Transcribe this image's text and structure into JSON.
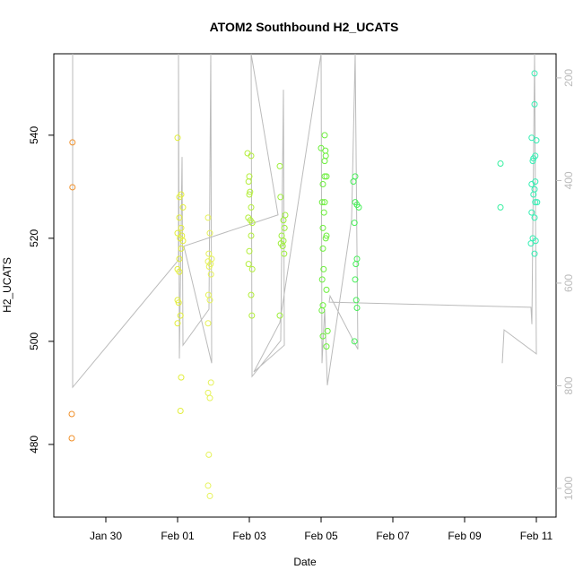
{
  "chart_data": {
    "type": "scatter",
    "title": "ATOM2 Southbound H2_UCATS",
    "x_label": "Date",
    "y_label": "H2_UCATS",
    "xlim": [
      28.55,
      42.55
    ],
    "ylim": [
      465.9,
      555.8
    ],
    "y2lim": [
      1056,
      153
    ],
    "xticks": [
      {
        "value": 30,
        "label": "Jan 30"
      },
      {
        "value": 32,
        "label": "Feb 01"
      },
      {
        "value": 34,
        "label": "Feb 03"
      },
      {
        "value": 36,
        "label": "Feb 05"
      },
      {
        "value": 38,
        "label": "Feb 07"
      },
      {
        "value": 40,
        "label": "Feb 09"
      },
      {
        "value": 42,
        "label": "Feb 11"
      }
    ],
    "yticks": [
      480,
      500,
      520,
      540
    ],
    "y2ticks": [
      200,
      400,
      600,
      800,
      1000
    ],
    "y2_color": "#bbbbbb",
    "series": [
      {
        "color": "#f0902a",
        "x": [
          29.07,
          29.07,
          29.05,
          29.05
        ],
        "values": [
          538.6,
          529.9,
          485.9,
          481.2
        ]
      },
      {
        "color": "#e2ee3c",
        "x": [
          32.0,
          32.1,
          32.05,
          32.15,
          32.05,
          32.1,
          32.0,
          32.12,
          32.07,
          32.15,
          32.1,
          32.05,
          32.0,
          32.05,
          32.0,
          32.03,
          32.08,
          32.0,
          32.1,
          32.08
        ],
        "values": [
          539.5,
          528.5,
          528,
          526,
          524,
          522,
          521,
          520.5,
          520,
          519.5,
          518,
          516,
          514,
          513.5,
          508,
          507.5,
          505,
          503.5,
          493,
          486.5
        ]
      },
      {
        "color": "#e6f25a",
        "x": [
          32.85,
          32.9,
          32.87,
          32.95,
          32.85,
          32.92,
          32.88,
          32.93,
          32.86,
          32.9,
          32.85,
          32.93,
          32.85,
          32.9,
          32.87,
          32.85,
          32.9
        ],
        "values": [
          524,
          521,
          517,
          516,
          515.5,
          515,
          514.5,
          513,
          509,
          508,
          503.5,
          492,
          490,
          489,
          478,
          472,
          470
        ]
      },
      {
        "color": "#b4ee3c",
        "x": [
          33.95,
          34.05,
          34.0,
          33.98,
          34.02,
          34.0,
          34.05,
          33.97,
          34.03,
          34.08,
          34.05,
          34.0,
          33.98,
          34.08,
          34.05,
          34.07
        ],
        "values": [
          536.5,
          536,
          532,
          531,
          529,
          528.5,
          526,
          524,
          523.5,
          523,
          520.5,
          517.5,
          515,
          514,
          509,
          505
        ]
      },
      {
        "color": "#9eef3c",
        "x": [
          34.85,
          34.87,
          35.0,
          34.95,
          34.98,
          34.9,
          34.95,
          34.88,
          34.93,
          34.97,
          34.85
        ],
        "values": [
          534,
          528,
          524.5,
          523.5,
          522,
          520.5,
          519.5,
          519,
          518.5,
          517,
          505
        ]
      },
      {
        "color": "#6cef3c",
        "x": [
          36.1,
          36.0,
          36.12,
          36.13,
          36.1,
          36.15,
          36.1,
          36.05,
          36.03,
          36.1,
          36.08,
          36.05,
          36.15,
          36.13,
          36.05,
          36.07,
          36.03,
          36.15,
          36.05,
          36.02,
          36.18,
          36.05,
          36.15
        ],
        "values": [
          540,
          537.5,
          537,
          536,
          535,
          532,
          532,
          530.5,
          527,
          527,
          525,
          522,
          520.5,
          520,
          518,
          514,
          512,
          510,
          507,
          506,
          502,
          501,
          499
        ]
      },
      {
        "color": "#48ef5a",
        "x": [
          36.95,
          36.9,
          36.95,
          37.0,
          37.05,
          36.93,
          37.0,
          36.97,
          36.95,
          36.98,
          37.0,
          36.93
        ],
        "values": [
          532,
          531,
          527,
          526.5,
          526,
          523,
          516,
          515,
          512,
          508,
          506.5,
          500
        ]
      },
      {
        "color": "#36efa0",
        "x": [
          41.0,
          41.0
        ],
        "values": [
          534.5,
          526
        ]
      },
      {
        "color": "#36efb4",
        "x": [
          41.95,
          41.95,
          41.87,
          42.0,
          41.97,
          41.92,
          41.9,
          41.97,
          41.87,
          41.95,
          41.92,
          41.97,
          42.02,
          41.87,
          41.95,
          41.9,
          41.98,
          41.85,
          41.95
        ],
        "values": [
          552,
          546,
          539.5,
          539,
          536,
          535.5,
          535,
          531,
          530.5,
          529.5,
          528.5,
          527,
          527,
          525,
          524,
          520,
          519.5,
          519,
          517
        ]
      },
      {
        "type": "line",
        "axis": "y2",
        "color": "#bbbbbb",
        "x": [
          29.075,
          29.075,
          32.025,
          32.025,
          32.05,
          32.125,
          32.15,
          32.875,
          32.925,
          32.95,
          32.175,
          34.8,
          34.05,
          34.075,
          34.875,
          34.95,
          34.975,
          34.125,
          34.85,
          36.0,
          36.025,
          36.1,
          36.175,
          36.85,
          36.95,
          37.025,
          36.25,
          36.225,
          41.85,
          41.875,
          41.95,
          42.0,
          41.1,
          41.05
        ],
        "values": [
          153,
          803,
          555,
          153,
          747,
          354,
          721,
          651,
          153,
          756,
          528,
          467,
          153,
          782,
          712,
          223,
          721,
          773,
          677,
          153,
          756,
          651,
          799,
          476,
          153,
          729,
          625,
          637,
          647,
          680,
          153,
          738,
          691,
          756
        ]
      }
    ]
  }
}
